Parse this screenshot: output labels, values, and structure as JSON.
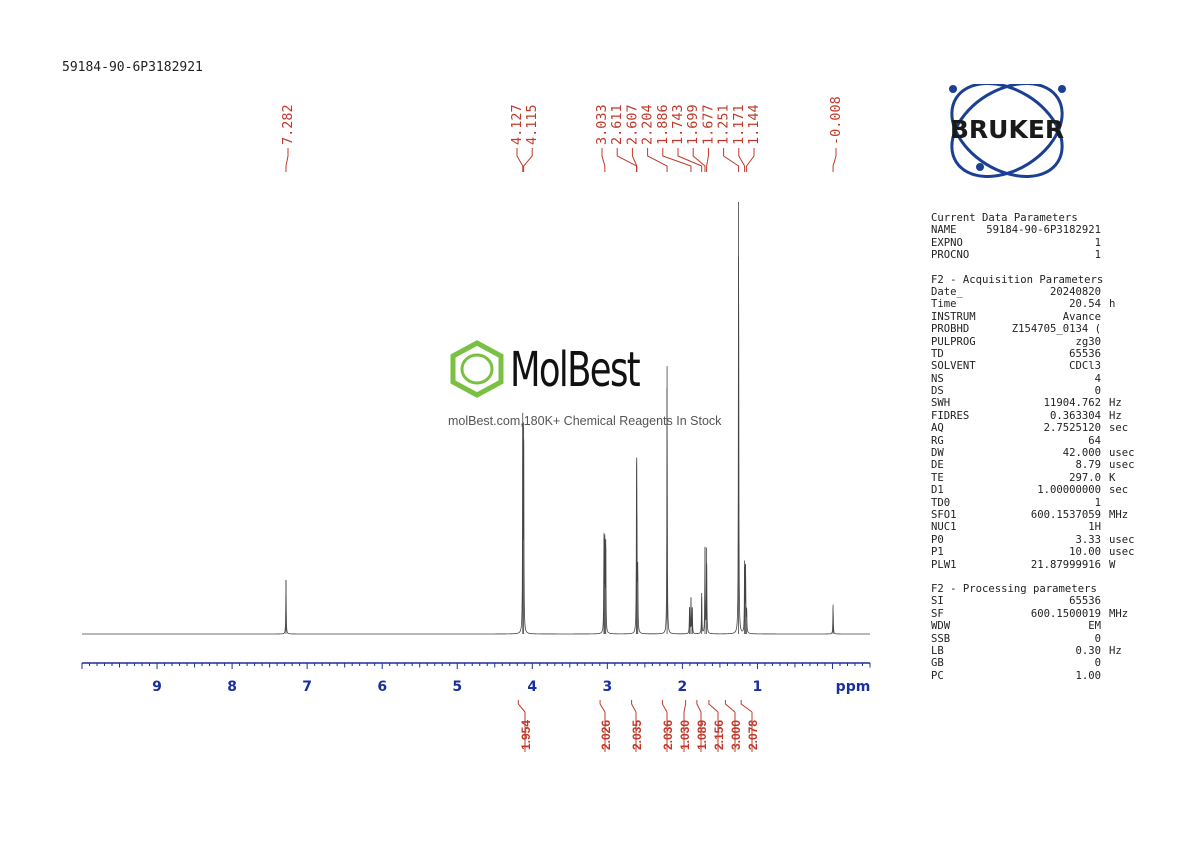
{
  "title": "59184-90-6P3182921",
  "chart_data": {
    "type": "line",
    "xlabel": "ppm",
    "xlim": [
      10.0,
      -0.5
    ],
    "x_ticks": [
      9,
      8,
      7,
      6,
      5,
      4,
      3,
      2,
      1
    ],
    "peak_labels": [
      "7.282",
      "4.127",
      "4.115",
      "3.033",
      "2.611",
      "2.607",
      "2.204",
      "1.886",
      "1.743",
      "1.699",
      "1.677",
      "1.251",
      "1.171",
      "1.144",
      "-0.008"
    ],
    "peaks": [
      {
        "ppm": 7.282,
        "height": 0.125
      },
      {
        "ppm": 4.127,
        "height": 0.48
      },
      {
        "ppm": 4.115,
        "height": 0.49
      },
      {
        "ppm": 3.045,
        "height": 0.22
      },
      {
        "ppm": 3.033,
        "height": 0.23
      },
      {
        "ppm": 3.021,
        "height": 0.2
      },
      {
        "ppm": 2.611,
        "height": 0.29
      },
      {
        "ppm": 2.607,
        "height": 0.27
      },
      {
        "ppm": 2.595,
        "height": 0.14
      },
      {
        "ppm": 2.204,
        "height": 0.62
      },
      {
        "ppm": 1.905,
        "height": 0.06
      },
      {
        "ppm": 1.886,
        "height": 0.085
      },
      {
        "ppm": 1.868,
        "height": 0.06
      },
      {
        "ppm": 1.743,
        "height": 0.095
      },
      {
        "ppm": 1.699,
        "height": 0.2
      },
      {
        "ppm": 1.677,
        "height": 0.2
      },
      {
        "ppm": 1.251,
        "height": 1.0
      },
      {
        "ppm": 1.171,
        "height": 0.17
      },
      {
        "ppm": 1.158,
        "height": 0.16
      },
      {
        "ppm": 1.144,
        "height": 0.06
      },
      {
        "ppm": -0.008,
        "height": 0.068
      }
    ],
    "integrals": [
      {
        "ppm": 4.12,
        "value": "1.954"
      },
      {
        "ppm": 3.03,
        "value": "2.026"
      },
      {
        "ppm": 2.61,
        "value": "2.035"
      },
      {
        "ppm": 2.2,
        "value": "2.036"
      },
      {
        "ppm": 1.89,
        "value": "1.030"
      },
      {
        "ppm": 1.74,
        "value": "1.089"
      },
      {
        "ppm": 1.58,
        "value": "2.156"
      },
      {
        "ppm": 1.36,
        "value": "3.000"
      },
      {
        "ppm": 1.15,
        "value": "2.078"
      }
    ]
  },
  "params": {
    "sections": [
      {
        "title": "Current Data Parameters",
        "rows": [
          {
            "name": "NAME",
            "value": "59184-90-6P3182921",
            "unit": ""
          },
          {
            "name": "EXPNO",
            "value": "1",
            "unit": ""
          },
          {
            "name": "PROCNO",
            "value": "1",
            "unit": ""
          }
        ]
      },
      {
        "title": "F2 - Acquisition Parameters",
        "rows": [
          {
            "name": "Date_",
            "value": "20240820",
            "unit": ""
          },
          {
            "name": "Time",
            "value": "20.54",
            "unit": "h"
          },
          {
            "name": "INSTRUM",
            "value": "Avance",
            "unit": ""
          },
          {
            "name": "PROBHD",
            "value": "Z154705_0134 (",
            "unit": ""
          },
          {
            "name": "PULPROG",
            "value": "zg30",
            "unit": ""
          },
          {
            "name": "TD",
            "value": "65536",
            "unit": ""
          },
          {
            "name": "SOLVENT",
            "value": "CDCl3",
            "unit": ""
          },
          {
            "name": "NS",
            "value": "4",
            "unit": ""
          },
          {
            "name": "DS",
            "value": "0",
            "unit": ""
          },
          {
            "name": "SWH",
            "value": "11904.762",
            "unit": "Hz"
          },
          {
            "name": "FIDRES",
            "value": "0.363304",
            "unit": "Hz"
          },
          {
            "name": "AQ",
            "value": "2.7525120",
            "unit": "sec"
          },
          {
            "name": "RG",
            "value": "64",
            "unit": ""
          },
          {
            "name": "DW",
            "value": "42.000",
            "unit": "usec"
          },
          {
            "name": "DE",
            "value": "8.79",
            "unit": "usec"
          },
          {
            "name": "TE",
            "value": "297.0",
            "unit": "K"
          },
          {
            "name": "D1",
            "value": "1.00000000",
            "unit": "sec"
          },
          {
            "name": "TD0",
            "value": "1",
            "unit": ""
          },
          {
            "name": "SFO1",
            "value": "600.1537059",
            "unit": "MHz"
          },
          {
            "name": "NUC1",
            "value": "1H",
            "unit": ""
          },
          {
            "name": "P0",
            "value": "3.33",
            "unit": "usec"
          },
          {
            "name": "P1",
            "value": "10.00",
            "unit": "usec"
          },
          {
            "name": "PLW1",
            "value": "21.87999916",
            "unit": "W"
          }
        ]
      },
      {
        "title": "F2 - Processing parameters",
        "rows": [
          {
            "name": "SI",
            "value": "65536",
            "unit": ""
          },
          {
            "name": "SF",
            "value": "600.1500019",
            "unit": "MHz"
          },
          {
            "name": "WDW",
            "value": "EM",
            "unit": ""
          },
          {
            "name": "SSB",
            "value": "0",
            "unit": ""
          },
          {
            "name": "LB",
            "value": "0.30",
            "unit": "Hz"
          },
          {
            "name": "GB",
            "value": "0",
            "unit": ""
          },
          {
            "name": "PC",
            "value": "1.00",
            "unit": ""
          }
        ]
      }
    ]
  },
  "logo": {
    "text": "BRUKER",
    "color": "#1a3f93",
    "accent": "#1a3f93"
  },
  "watermark": {
    "name": "MolBest",
    "slogan": "molBest.com,180K+ Chemical Reagents In Stock",
    "color": "#7ac143"
  },
  "colors": {
    "axis": "#1a2fa0",
    "peak_label": "#c0392b",
    "integral": "#c0392b",
    "spectrum": "#444444"
  }
}
